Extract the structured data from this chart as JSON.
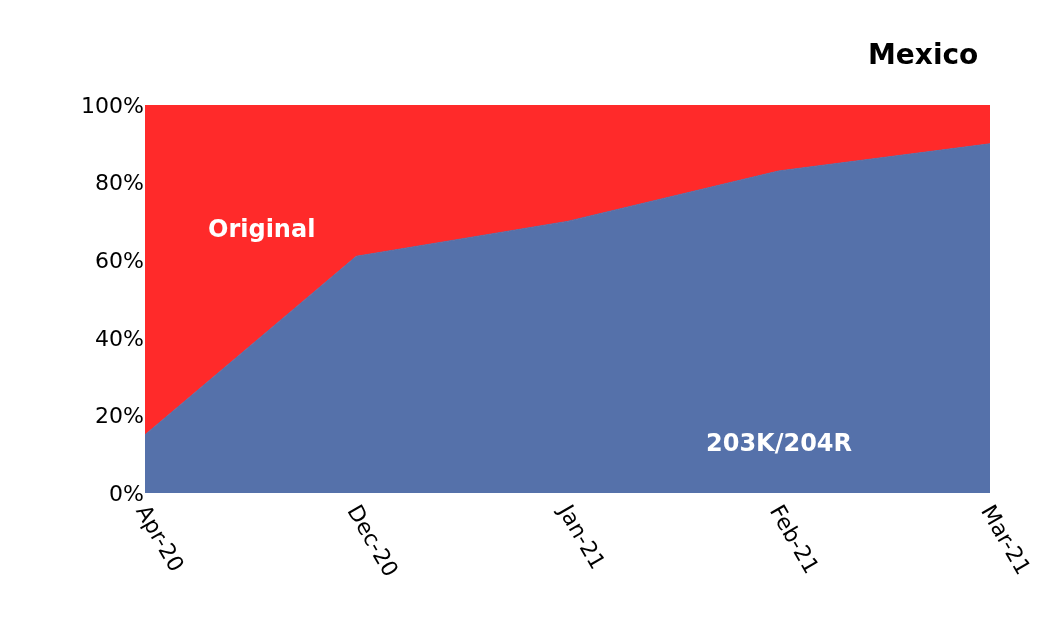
{
  "chart_data": {
    "type": "area",
    "title": "Mexico",
    "stacked": true,
    "categories": [
      "Apr-20",
      "Dec-20",
      "Jan-21",
      "Feb-21",
      "Mar-21"
    ],
    "series": [
      {
        "name": "203K/204R",
        "color": "#5571aa",
        "values": [
          15,
          61,
          70,
          83,
          90
        ]
      },
      {
        "name": "Original",
        "color": "#ff2a2a",
        "values": [
          85,
          39,
          30,
          17,
          10
        ]
      }
    ],
    "ylim": [
      0,
      100
    ],
    "yticks": [
      {
        "value": 0,
        "label": "0%"
      },
      {
        "value": 20,
        "label": "20%"
      },
      {
        "value": 40,
        "label": "40%"
      },
      {
        "value": 60,
        "label": "60%"
      },
      {
        "value": 80,
        "label": "80%"
      },
      {
        "value": 100,
        "label": "100%"
      }
    ],
    "legend": false
  }
}
